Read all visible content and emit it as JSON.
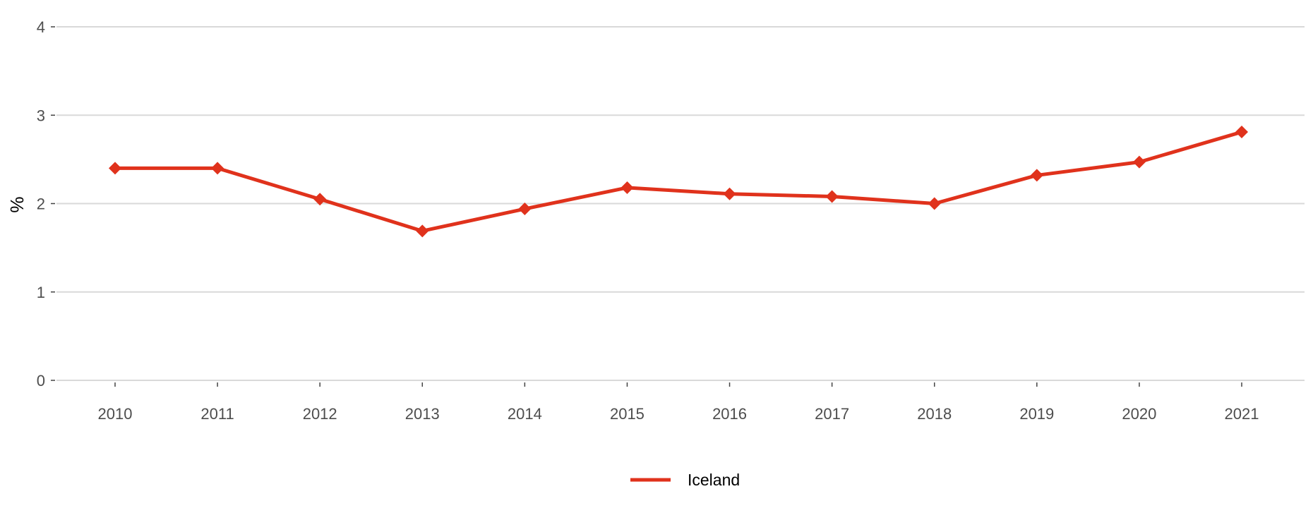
{
  "chart_data": {
    "type": "line",
    "title": "",
    "xlabel": "",
    "ylabel": "%",
    "x": [
      "2010",
      "2011",
      "2012",
      "2013",
      "2014",
      "2015",
      "2016",
      "2017",
      "2018",
      "2019",
      "2020",
      "2021"
    ],
    "yticks": [
      "0",
      "1",
      "2",
      "3",
      "4"
    ],
    "ylim": [
      0,
      4
    ],
    "grid": "horizontal",
    "legend_position": "bottom",
    "series": [
      {
        "name": "Iceland",
        "color": "#e0321c",
        "marker": "diamond",
        "values": [
          2.4,
          2.4,
          2.05,
          1.69,
          1.94,
          2.18,
          2.11,
          2.08,
          2.0,
          2.32,
          2.47,
          2.81
        ]
      }
    ]
  }
}
